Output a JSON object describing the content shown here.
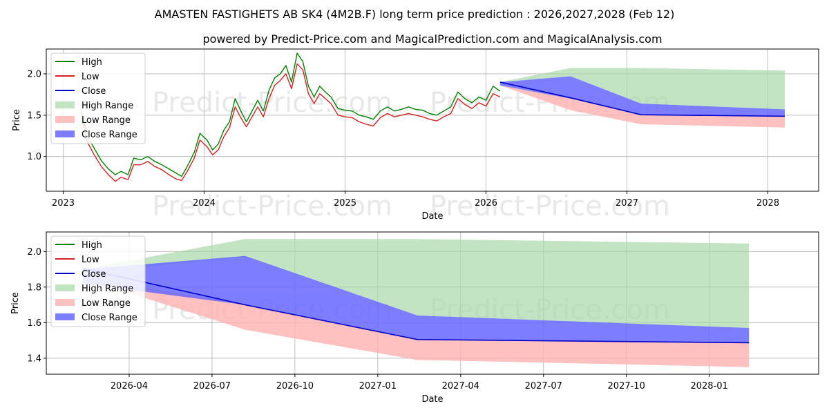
{
  "title": "AMASTEN FASTIGHETS AB SK4 (4M2B.F) long term price prediction : 2026,2027,2028 (Feb 12)",
  "subtitle": "powered by Predict-Price.com and MagicalPrediction.com and MagicalAnalysis.com",
  "watermark": "Predict-Price.com",
  "colors": {
    "high": "#008000",
    "low": "#d62020",
    "close": "#0000cc",
    "high_range": "#a8d8a8",
    "low_range": "#ffb0b0",
    "close_range": "#6666ff"
  },
  "legend": [
    "High",
    "Low",
    "Close",
    "High Range",
    "Low Range",
    "Close Range"
  ],
  "chart_data": [
    {
      "type": "line",
      "name": "long-term",
      "xlabel": "Date",
      "ylabel": "Price",
      "xlim": [
        2022.88,
        2028.36
      ],
      "ylim": [
        0.58,
        2.3
      ],
      "xticks": [
        {
          "v": 2023,
          "label": "2023"
        },
        {
          "v": 2024,
          "label": "2024"
        },
        {
          "v": 2025,
          "label": "2025"
        },
        {
          "v": 2026,
          "label": "2026"
        },
        {
          "v": 2027,
          "label": "2027"
        },
        {
          "v": 2028,
          "label": "2028"
        }
      ],
      "yticks": [
        {
          "v": 1.0,
          "label": "1.0"
        },
        {
          "v": 1.5,
          "label": "1.5"
        },
        {
          "v": 2.0,
          "label": "2.0"
        }
      ],
      "history": {
        "x": [
          2023.13,
          2023.17,
          2023.22,
          2023.27,
          2023.32,
          2023.37,
          2023.41,
          2023.46,
          2023.5,
          2023.55,
          2023.6,
          2023.65,
          2023.7,
          2023.75,
          2023.8,
          2023.84,
          2023.88,
          2023.93,
          2023.97,
          2024.02,
          2024.06,
          2024.1,
          2024.14,
          2024.18,
          2024.22,
          2024.26,
          2024.3,
          2024.34,
          2024.38,
          2024.42,
          2024.46,
          2024.5,
          2024.54,
          2024.58,
          2024.62,
          2024.66,
          2024.7,
          2024.74,
          2024.78,
          2024.82,
          2024.86,
          2024.9,
          2024.95,
          2025.0,
          2025.05,
          2025.1,
          2025.15,
          2025.2,
          2025.25,
          2025.3,
          2025.35,
          2025.4,
          2025.45,
          2025.5,
          2025.55,
          2025.6,
          2025.65,
          2025.7,
          2025.75,
          2025.8,
          2025.85,
          2025.9,
          2025.95,
          2026.0,
          2026.05,
          2026.1
        ],
        "high": [
          1.55,
          1.25,
          1.1,
          0.95,
          0.85,
          0.78,
          0.82,
          0.78,
          0.98,
          0.96,
          1.0,
          0.94,
          0.9,
          0.85,
          0.8,
          0.76,
          0.88,
          1.05,
          1.28,
          1.2,
          1.08,
          1.15,
          1.32,
          1.42,
          1.7,
          1.55,
          1.42,
          1.55,
          1.68,
          1.55,
          1.8,
          1.95,
          2.0,
          2.1,
          1.9,
          2.25,
          2.15,
          1.85,
          1.72,
          1.85,
          1.78,
          1.72,
          1.58,
          1.56,
          1.55,
          1.5,
          1.48,
          1.45,
          1.55,
          1.6,
          1.55,
          1.57,
          1.6,
          1.57,
          1.56,
          1.52,
          1.5,
          1.55,
          1.6,
          1.78,
          1.7,
          1.65,
          1.72,
          1.68,
          1.85,
          1.79
        ],
        "low": [
          1.48,
          1.18,
          1.02,
          0.88,
          0.78,
          0.7,
          0.75,
          0.72,
          0.9,
          0.9,
          0.94,
          0.88,
          0.84,
          0.78,
          0.73,
          0.71,
          0.82,
          0.98,
          1.2,
          1.12,
          1.02,
          1.08,
          1.24,
          1.35,
          1.6,
          1.47,
          1.36,
          1.48,
          1.6,
          1.48,
          1.7,
          1.86,
          1.92,
          2.0,
          1.82,
          2.12,
          2.05,
          1.76,
          1.64,
          1.76,
          1.7,
          1.64,
          1.5,
          1.48,
          1.47,
          1.42,
          1.39,
          1.37,
          1.47,
          1.52,
          1.48,
          1.5,
          1.52,
          1.5,
          1.48,
          1.45,
          1.43,
          1.48,
          1.52,
          1.7,
          1.63,
          1.58,
          1.65,
          1.61,
          1.76,
          1.72
        ]
      },
      "forecast": {
        "x": [
          2026.1,
          2026.6,
          2027.1,
          2028.12
        ],
        "high_range_upper": [
          1.9,
          2.07,
          2.07,
          2.04
        ],
        "low_range_lower": [
          1.86,
          1.56,
          1.39,
          1.35
        ],
        "close_range_upper": [
          1.9,
          1.97,
          1.64,
          1.57
        ],
        "close_range_lower": [
          1.86,
          1.7,
          1.5,
          1.48
        ],
        "close": [
          1.9,
          1.71,
          1.505,
          1.487
        ]
      }
    },
    {
      "type": "line",
      "name": "zoomed-forecast",
      "xlabel": "Date",
      "ylabel": "Price",
      "xlim": [
        2026.0,
        2028.33
      ],
      "ylim": [
        1.31,
        2.11
      ],
      "xticks": [
        {
          "v": 2026.25,
          "label": "2026-04"
        },
        {
          "v": 2026.5,
          "label": "2026-07"
        },
        {
          "v": 2026.75,
          "label": "2026-10"
        },
        {
          "v": 2027.0,
          "label": "2027-01"
        },
        {
          "v": 2027.25,
          "label": "2027-04"
        },
        {
          "v": 2027.5,
          "label": "2027-07"
        },
        {
          "v": 2027.75,
          "label": "2027-10"
        },
        {
          "v": 2028.0,
          "label": "2028-01"
        }
      ],
      "yticks": [
        {
          "v": 1.4,
          "label": "1.4"
        },
        {
          "v": 1.6,
          "label": "1.6"
        },
        {
          "v": 1.8,
          "label": "1.8"
        },
        {
          "v": 2.0,
          "label": "2.0"
        }
      ],
      "forecast": {
        "x": [
          2026.11,
          2026.6,
          2027.12,
          2028.12
        ],
        "high_range_upper": [
          1.9,
          2.07,
          2.07,
          2.045
        ],
        "high_range_lower": [
          1.88,
          1.97,
          1.64,
          1.57
        ],
        "low_range_upper": [
          1.86,
          1.7,
          1.505,
          1.487
        ],
        "low_range_lower": [
          1.85,
          1.56,
          1.39,
          1.35
        ],
        "close_range_upper": [
          1.9,
          1.975,
          1.64,
          1.57
        ],
        "close_range_lower": [
          1.82,
          1.7,
          1.505,
          1.487
        ],
        "close": [
          1.905,
          1.7,
          1.505,
          1.487
        ]
      }
    }
  ]
}
